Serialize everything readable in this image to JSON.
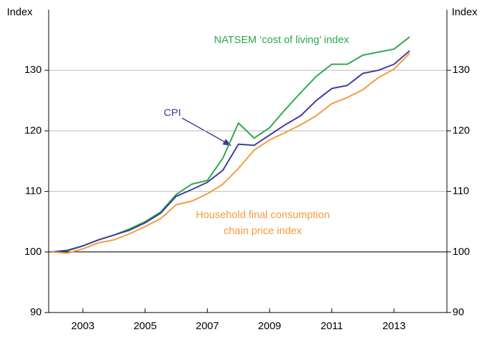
{
  "chart_data": {
    "type": "line",
    "ylabel": "Index",
    "ylabel_right": "Index",
    "annotations": [
      "NATSEM ‘cost of living’ index",
      "CPI",
      "Household final consumption",
      "chain price index"
    ],
    "x": [
      2002.0,
      2002.5,
      2003.0,
      2003.5,
      2004.0,
      2004.5,
      2005.0,
      2005.5,
      2006.0,
      2006.5,
      2007.0,
      2007.5,
      2008.0,
      2008.5,
      2009.0,
      2009.5,
      2010.0,
      2010.5,
      2011.0,
      2011.5,
      2012.0,
      2012.5,
      2013.0,
      2013.5
    ],
    "series": [
      {
        "color": "#2aa84a",
        "values": [
          100,
          100.3,
          101,
          102,
          102.8,
          103.8,
          105,
          106.6,
          109.5,
          111.2,
          111.8,
          115.5,
          121.3,
          118.8,
          120.5,
          123.5,
          126.3,
          129,
          131,
          131,
          132.5,
          133,
          133.5,
          135.5
        ]
      },
      {
        "color": "#3f3a9c",
        "values": [
          100,
          100.2,
          101,
          102,
          102.8,
          103.6,
          104.8,
          106.4,
          109.2,
          110.3,
          111.5,
          113.5,
          117.8,
          117.6,
          119.3,
          121,
          122.5,
          125,
          127,
          127.5,
          129.5,
          130,
          131,
          133.2
        ]
      },
      {
        "color": "#f59a3a",
        "values": [
          100,
          99.8,
          100.5,
          101.5,
          102,
          103,
          104.2,
          105.5,
          107.8,
          108.4,
          109.6,
          111.2,
          113.8,
          116.8,
          118.5,
          119.7,
          121,
          122.5,
          124.5,
          125.5,
          126.8,
          128.8,
          130.2,
          132.8
        ]
      }
    ],
    "xlim": [
      2001.9,
      2014.7
    ],
    "xticks": [
      2003,
      2005,
      2007,
      2009,
      2011,
      2013
    ],
    "ylim": [
      90,
      140
    ],
    "yticks": [
      90,
      100,
      110,
      120,
      130
    ],
    "baseline": 100,
    "grid": true
  }
}
